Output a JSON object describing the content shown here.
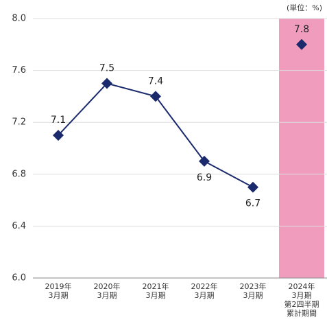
{
  "chart_data": {
    "type": "line",
    "unit_label": "(単位：%)",
    "categories": [
      [
        "2019年",
        "3月期"
      ],
      [
        "2020年",
        "3月期"
      ],
      [
        "2021年",
        "3月期"
      ],
      [
        "2022年",
        "3月期"
      ],
      [
        "2023年",
        "3月期"
      ],
      [
        "2024年",
        "3月期",
        "第2四半期",
        "累計期間"
      ]
    ],
    "series": [
      {
        "color": "#1a2a6c",
        "values": [
          7.1,
          7.5,
          7.4,
          6.9,
          6.7,
          null
        ],
        "label_positions": [
          "above",
          "above",
          "above",
          "below",
          "below",
          null
        ]
      },
      {
        "color": "#1a2a6c",
        "values": [
          null,
          null,
          null,
          null,
          null,
          7.8
        ],
        "label_positions": [
          null,
          null,
          null,
          null,
          null,
          "above"
        ],
        "highlight_color": "#f09cbc"
      }
    ],
    "ylim": [
      6.0,
      8.0
    ],
    "yticks": [
      {
        "value": 6.0,
        "label": "6.0"
      },
      6.4,
      6.8,
      7.2,
      7.6,
      {
        "value": 8.0,
        "label": "8.0"
      }
    ],
    "grid": true
  }
}
